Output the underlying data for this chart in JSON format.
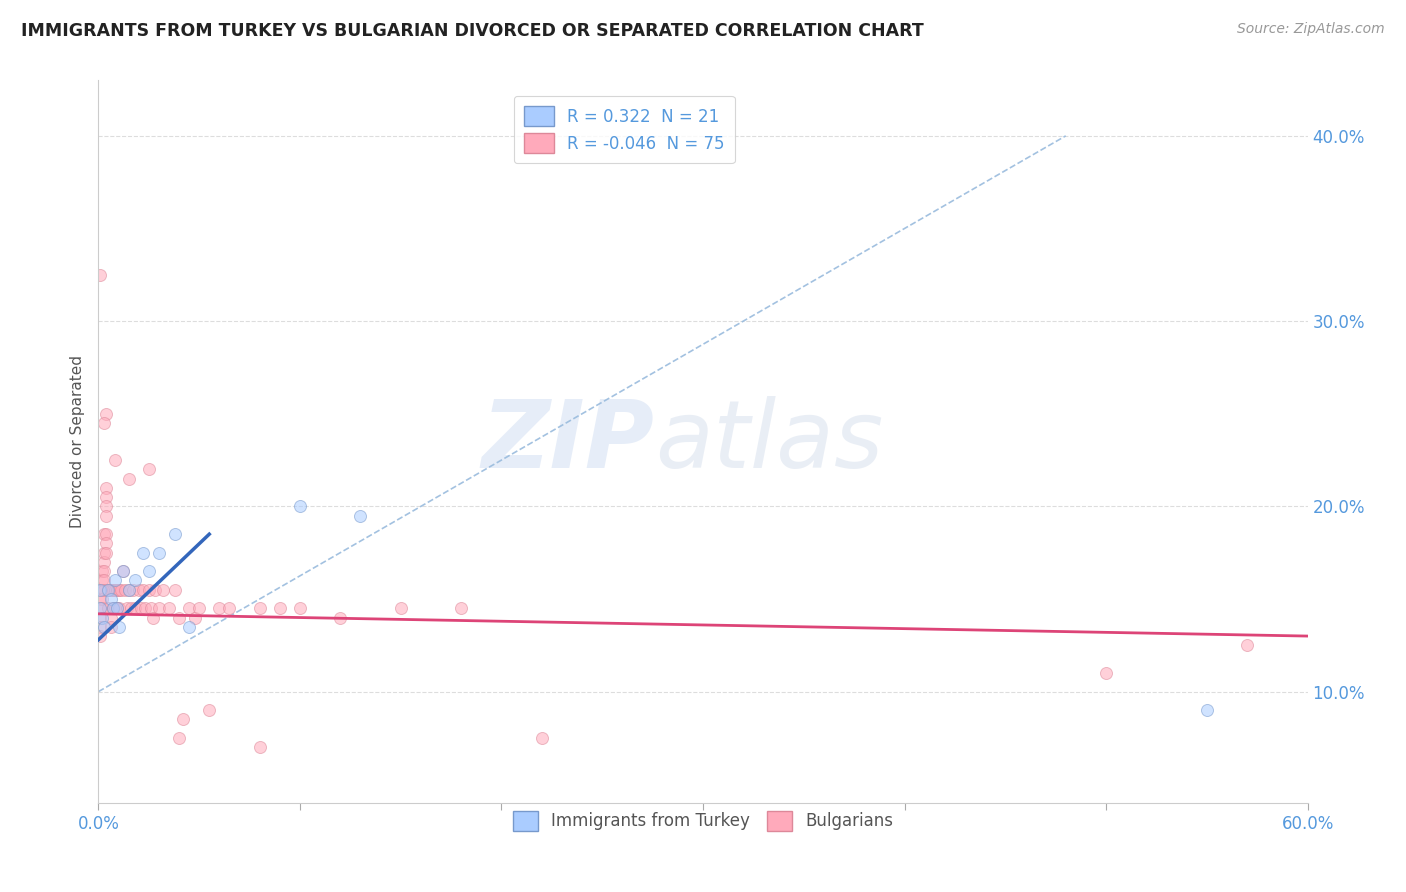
{
  "title": "IMMIGRANTS FROM TURKEY VS BULGARIAN DIVORCED OR SEPARATED CORRELATION CHART",
  "source_text": "Source: ZipAtlas.com",
  "ylabel": "Divorced or Separated",
  "xlim": [
    0.0,
    0.6
  ],
  "ylim": [
    0.04,
    0.43
  ],
  "yticks_right": [
    0.1,
    0.2,
    0.3,
    0.4
  ],
  "ytick_labels_right": [
    "10.0%",
    "20.0%",
    "30.0%",
    "40.0%"
  ],
  "watermark_zip": "ZIP",
  "watermark_atlas": "atlas",
  "legend_R_blue": " 0.322",
  "legend_N_blue": "21",
  "legend_R_pink": "-0.046",
  "legend_N_pink": "75",
  "blue_scatter_x": [
    0.001,
    0.001,
    0.002,
    0.003,
    0.005,
    0.006,
    0.007,
    0.008,
    0.009,
    0.01,
    0.012,
    0.015,
    0.018,
    0.022,
    0.025,
    0.03,
    0.038,
    0.045,
    0.1,
    0.13,
    0.55
  ],
  "blue_scatter_y": [
    0.155,
    0.145,
    0.14,
    0.135,
    0.155,
    0.15,
    0.145,
    0.16,
    0.145,
    0.135,
    0.165,
    0.155,
    0.16,
    0.175,
    0.165,
    0.175,
    0.185,
    0.135,
    0.2,
    0.195,
    0.09
  ],
  "pink_scatter_x": [
    0.001,
    0.001,
    0.001,
    0.001,
    0.001,
    0.001,
    0.002,
    0.002,
    0.002,
    0.002,
    0.002,
    0.003,
    0.003,
    0.003,
    0.003,
    0.003,
    0.003,
    0.004,
    0.004,
    0.004,
    0.004,
    0.004,
    0.004,
    0.004,
    0.004,
    0.005,
    0.005,
    0.006,
    0.006,
    0.006,
    0.007,
    0.007,
    0.008,
    0.008,
    0.009,
    0.009,
    0.01,
    0.01,
    0.011,
    0.012,
    0.013,
    0.014,
    0.015,
    0.016,
    0.017,
    0.018,
    0.02,
    0.021,
    0.022,
    0.023,
    0.025,
    0.026,
    0.027,
    0.028,
    0.03,
    0.032,
    0.035,
    0.038,
    0.04,
    0.042,
    0.045,
    0.048,
    0.05,
    0.055,
    0.06,
    0.065,
    0.08,
    0.09,
    0.1,
    0.12,
    0.15,
    0.18,
    0.22,
    0.5,
    0.57
  ],
  "pink_scatter_y": [
    0.155,
    0.15,
    0.145,
    0.14,
    0.135,
    0.13,
    0.165,
    0.16,
    0.155,
    0.15,
    0.145,
    0.185,
    0.175,
    0.17,
    0.165,
    0.16,
    0.155,
    0.21,
    0.205,
    0.2,
    0.195,
    0.185,
    0.18,
    0.175,
    0.25,
    0.155,
    0.145,
    0.155,
    0.14,
    0.135,
    0.155,
    0.145,
    0.155,
    0.145,
    0.155,
    0.145,
    0.155,
    0.145,
    0.155,
    0.165,
    0.155,
    0.145,
    0.155,
    0.145,
    0.155,
    0.145,
    0.155,
    0.145,
    0.155,
    0.145,
    0.155,
    0.145,
    0.14,
    0.155,
    0.145,
    0.155,
    0.145,
    0.155,
    0.14,
    0.085,
    0.145,
    0.14,
    0.145,
    0.09,
    0.145,
    0.145,
    0.145,
    0.145,
    0.145,
    0.14,
    0.145,
    0.145,
    0.075,
    0.11,
    0.125
  ],
  "pink_scatter_extra_x": [
    0.001,
    0.003,
    0.008,
    0.015,
    0.025,
    0.04,
    0.08
  ],
  "pink_scatter_extra_y": [
    0.325,
    0.245,
    0.225,
    0.215,
    0.22,
    0.075,
    0.07
  ],
  "blue_line_x": [
    0.0,
    0.055
  ],
  "blue_line_y": [
    0.128,
    0.185
  ],
  "pink_line_x": [
    0.0,
    0.6
  ],
  "pink_line_y": [
    0.142,
    0.13
  ],
  "dashed_line_x": [
    0.0,
    0.48
  ],
  "dashed_line_y": [
    0.1,
    0.4
  ],
  "background_color": "#ffffff",
  "scatter_alpha": 0.55,
  "scatter_size": 75,
  "blue_color": "#aaccff",
  "blue_edge": "#7799cc",
  "pink_color": "#ffaabb",
  "pink_edge": "#dd8899",
  "blue_line_color": "#3366bb",
  "pink_line_color": "#dd4477",
  "dashed_line_color": "#99bbdd",
  "grid_color": "#dddddd",
  "title_color": "#222222",
  "axis_label_color": "#555555",
  "right_tick_color": "#5599dd",
  "bottom_tick_color": "#5599dd"
}
